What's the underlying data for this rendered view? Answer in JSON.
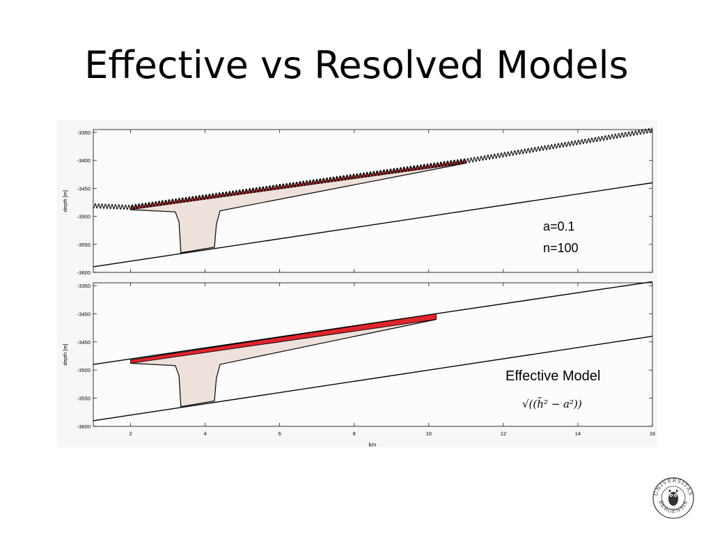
{
  "slide": {
    "title": "Effective vs Resolved Models"
  },
  "colors": {
    "cap_red": "#e0242b",
    "trap_fill": "#eee0da",
    "line": "#000000",
    "panel_bg": "#fafafa"
  },
  "chart_data": [
    {
      "type": "line",
      "title": "",
      "xlabel": "",
      "ylabel": "depth [m]",
      "xlim": [
        1,
        16
      ],
      "ylim": [
        -3600,
        -3345
      ],
      "xticks": [
        2,
        4,
        6,
        8,
        10,
        12,
        14,
        16
      ],
      "yticks": [
        -3350,
        -3400,
        -3450,
        -3500,
        -3550,
        -3600
      ],
      "ytick_labels": [
        "-3350",
        "-3400",
        "-3450",
        "-3500",
        "-3550",
        "-3600"
      ],
      "grid": false,
      "annotation": [
        "a=0.1",
        "n=100"
      ],
      "series": [
        {
          "role": "top-surface-corrugated",
          "x": [
            1.0,
            2.0,
            11.0,
            16.0
          ],
          "y": [
            -3485,
            -3488,
            -3405,
            -3350
          ],
          "oscillation_amplitude": 8,
          "oscillation_count": 100
        },
        {
          "role": "bottom-surface",
          "x": [
            1.0,
            16.0
          ],
          "y": [
            -3590,
            -3440
          ]
        },
        {
          "role": "trap-outline",
          "x": [
            2.0,
            3.2,
            3.3,
            3.35,
            4.25,
            4.3,
            4.4,
            11.0
          ],
          "y": [
            -3488,
            -3492,
            -3510,
            -3565,
            -3555,
            -3515,
            -3490,
            -3405
          ]
        }
      ]
    },
    {
      "type": "line",
      "title": "",
      "xlabel": "km",
      "ylabel": "depth [m]",
      "xlim": [
        1,
        16
      ],
      "ylim": [
        -3600,
        -3345
      ],
      "xticks": [
        2,
        4,
        6,
        8,
        10,
        12,
        14,
        16
      ],
      "xtick_labels": [
        "2",
        "4",
        "6",
        "8",
        "10",
        "12",
        "14",
        "16"
      ],
      "yticks": [
        -3350,
        -3400,
        -3450,
        -3500,
        -3550,
        -3600
      ],
      "ytick_labels": [
        "-3350",
        "-3400",
        "-3450",
        "-3500",
        "-3550",
        "-3600"
      ],
      "grid": false,
      "annotation": [
        "Effective Model"
      ],
      "formula": "√((h̄² − a²))",
      "series": [
        {
          "role": "top-surface",
          "x": [
            1.0,
            16.0
          ],
          "y": [
            -3490,
            -3343
          ]
        },
        {
          "role": "bottom-surface",
          "x": [
            1.0,
            16.0
          ],
          "y": [
            -3590,
            -3440
          ]
        },
        {
          "role": "effective-cap-upper",
          "x": [
            2.0,
            10.2
          ],
          "y": [
            -3482,
            -3400
          ]
        },
        {
          "role": "effective-cap-lower",
          "x": [
            2.0,
            10.2
          ],
          "y": [
            -3488,
            -3410
          ]
        },
        {
          "role": "trap-outline",
          "x": [
            2.0,
            3.2,
            3.3,
            3.35,
            4.25,
            4.3,
            4.4,
            10.2
          ],
          "y": [
            -3488,
            -3492,
            -3510,
            -3565,
            -3555,
            -3515,
            -3490,
            -3410
          ]
        }
      ]
    }
  ],
  "logo": {
    "ring_text": "UNIVERSITAS BERGENSIS"
  }
}
